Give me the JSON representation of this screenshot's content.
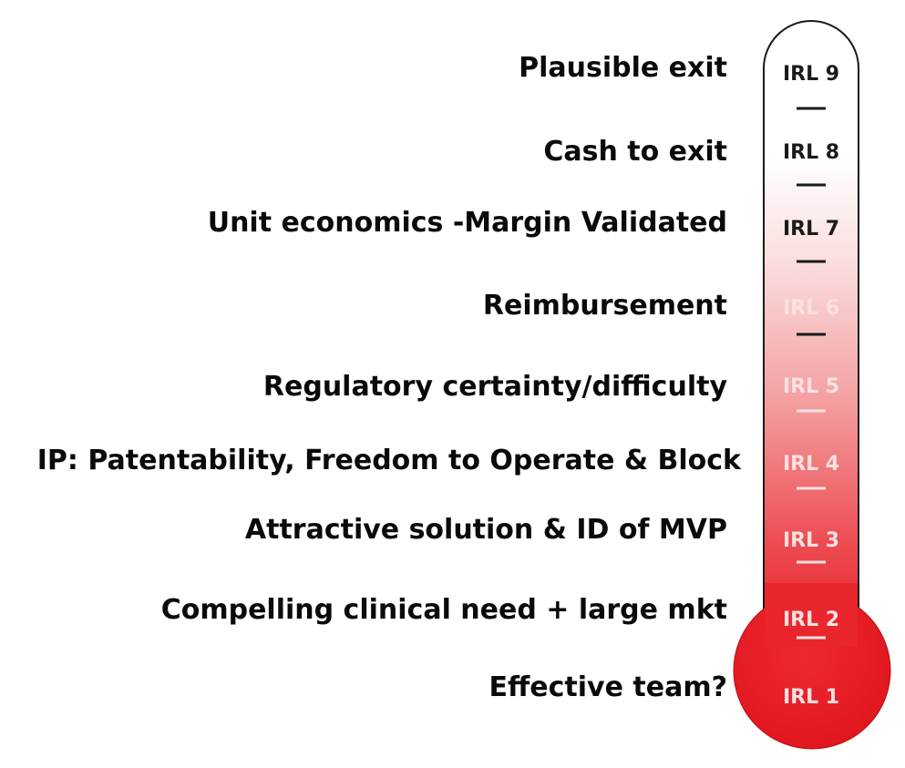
{
  "levels": [
    {
      "code": "IRL 9",
      "label": "Plausible exit"
    },
    {
      "code": "IRL 8",
      "label": "Cash to exit"
    },
    {
      "code": "IRL 7",
      "label": "Unit economics -Margin Validated"
    },
    {
      "code": "IRL 6",
      "label": "Reimbursement"
    },
    {
      "code": "IRL 5",
      "label": "Regulatory certainty/difficulty"
    },
    {
      "code": "IRL 4",
      "label": "IP: Patentability, Freedom to Operate & Block"
    },
    {
      "code": "IRL 3",
      "label": "Attractive solution & ID of MVP"
    },
    {
      "code": "IRL 2",
      "label": "Compelling clinical need + large mkt"
    },
    {
      "code": "IRL 1",
      "label": "Effective team?"
    }
  ],
  "colors": {
    "text": "#0a0a0a",
    "tube_top": "#ffffff",
    "tube_bottom": "#e8222a",
    "outline": "#1a1a1a",
    "irl_dark": "#1a1a1a",
    "irl_light": "#fbe1e1"
  }
}
